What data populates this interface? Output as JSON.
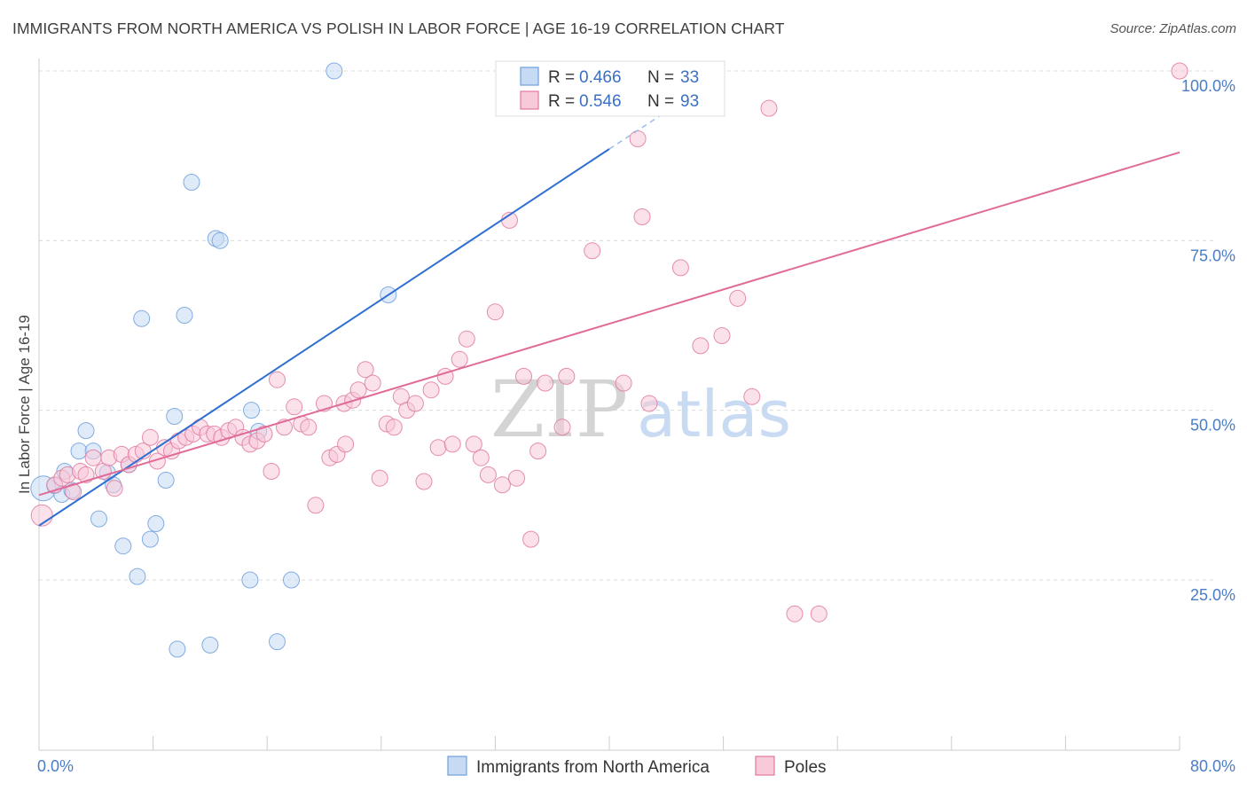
{
  "title": "IMMIGRANTS FROM NORTH AMERICA VS POLISH IN LABOR FORCE | AGE 16-19 CORRELATION CHART",
  "source": "Source: ZipAtlas.com",
  "watermark": {
    "zip": "ZIP",
    "atlas": "atlas"
  },
  "chart_data": {
    "type": "scatter",
    "xlabel": "",
    "ylabel": "In Labor Force | Age 16-19",
    "xlim": [
      0,
      80
    ],
    "ylim": [
      2,
      101
    ],
    "x_tick_labels": [
      "0.0%",
      "80.0%"
    ],
    "y_ticks": [
      25,
      50,
      75,
      100
    ],
    "y_tick_labels": [
      "25.0%",
      "50.0%",
      "75.0%",
      "100.0%"
    ],
    "grid": "horizontal dashed",
    "legend_top": [
      {
        "r_label": "R = ",
        "r_value": "0.466",
        "n_label": "N = ",
        "n_value": "33"
      },
      {
        "r_label": "R = ",
        "r_value": "0.546",
        "n_label": "N = ",
        "n_value": "93"
      }
    ],
    "series": [
      {
        "name": "Immigrants from North America",
        "color": "#6f9fdc",
        "fill": "#c7daf4",
        "trend": {
          "x0": 0,
          "y0": 33,
          "x1": 40,
          "y1": 88.5,
          "dashed_to_x": 48,
          "dashed_to_y": 99.5
        },
        "points": [
          [
            0.3,
            38.5,
            14
          ],
          [
            1.1,
            38.9,
            9
          ],
          [
            1.6,
            37.6,
            9
          ],
          [
            1.8,
            41,
            9
          ],
          [
            2.3,
            38.2,
            9
          ],
          [
            2.8,
            44,
            9
          ],
          [
            3.3,
            47,
            9
          ],
          [
            3.8,
            44,
            9
          ],
          [
            4.2,
            34,
            9
          ],
          [
            4.8,
            40.8,
            9
          ],
          [
            5.2,
            39,
            9
          ],
          [
            5.9,
            30,
            9
          ],
          [
            6.3,
            42,
            9
          ],
          [
            6.9,
            25.5,
            9
          ],
          [
            7.2,
            63.5,
            9
          ],
          [
            7.8,
            31,
            9
          ],
          [
            8.2,
            33.3,
            9
          ],
          [
            8.9,
            39.7,
            9
          ],
          [
            9.5,
            49.1,
            9
          ],
          [
            9.7,
            14.8,
            9
          ],
          [
            10.2,
            64,
            9
          ],
          [
            10.7,
            83.6,
            9
          ],
          [
            12.0,
            15.4,
            9
          ],
          [
            12.4,
            75.3,
            9
          ],
          [
            12.7,
            75,
            9
          ],
          [
            14.8,
            25,
            9
          ],
          [
            14.9,
            50,
            9
          ],
          [
            15.4,
            46.9,
            9
          ],
          [
            16.7,
            15.9,
            9
          ],
          [
            17.7,
            25,
            9
          ],
          [
            20.7,
            100,
            9
          ],
          [
            24.5,
            67,
            9
          ],
          [
            33.0,
            100,
            9
          ]
        ]
      },
      {
        "name": "Poles",
        "color": "#e07aa0",
        "fill": "#f7c9d9",
        "trend": {
          "x0": 0,
          "y0": 37.5,
          "x1": 80,
          "y1": 88
        },
        "points": [
          [
            0.2,
            34.5,
            12
          ],
          [
            1.1,
            39.0,
            9
          ],
          [
            1.6,
            40.0,
            9
          ],
          [
            2.0,
            40.5,
            9
          ],
          [
            2.4,
            38.0,
            9
          ],
          [
            2.9,
            41.0,
            9
          ],
          [
            3.3,
            40.5,
            9
          ],
          [
            3.8,
            43.0,
            9
          ],
          [
            4.5,
            41.0,
            9
          ],
          [
            4.9,
            43.0,
            9
          ],
          [
            5.3,
            38.5,
            9
          ],
          [
            5.8,
            43.5,
            9
          ],
          [
            6.3,
            42.0,
            9
          ],
          [
            6.8,
            43.5,
            9
          ],
          [
            7.3,
            44.0,
            9
          ],
          [
            7.8,
            46.0,
            9
          ],
          [
            8.3,
            42.5,
            9
          ],
          [
            8.8,
            44.5,
            9
          ],
          [
            9.3,
            44.0,
            9
          ],
          [
            9.8,
            45.5,
            9
          ],
          [
            10.3,
            46.0,
            9
          ],
          [
            10.8,
            46.5,
            9
          ],
          [
            11.3,
            47.5,
            9
          ],
          [
            11.8,
            46.5,
            9
          ],
          [
            12.3,
            46.5,
            9
          ],
          [
            12.8,
            46.0,
            9
          ],
          [
            13.3,
            47.0,
            9
          ],
          [
            13.8,
            47.5,
            9
          ],
          [
            14.3,
            46.0,
            9
          ],
          [
            14.8,
            45.0,
            9
          ],
          [
            15.3,
            45.5,
            9
          ],
          [
            15.8,
            46.5,
            9
          ],
          [
            16.3,
            41.0,
            9
          ],
          [
            16.7,
            54.5,
            9
          ],
          [
            17.2,
            47.5,
            9
          ],
          [
            17.9,
            50.5,
            9
          ],
          [
            18.4,
            48.0,
            9
          ],
          [
            18.9,
            47.5,
            9
          ],
          [
            19.4,
            36.0,
            9
          ],
          [
            20.0,
            51.0,
            9
          ],
          [
            20.4,
            43.0,
            9
          ],
          [
            20.9,
            43.5,
            9
          ],
          [
            21.4,
            51.0,
            9
          ],
          [
            22.0,
            51.5,
            9
          ],
          [
            22.4,
            53.0,
            9
          ],
          [
            22.9,
            56.0,
            9
          ],
          [
            23.4,
            54.0,
            9
          ],
          [
            23.9,
            40.0,
            9
          ],
          [
            24.4,
            48.0,
            9
          ],
          [
            24.9,
            47.5,
            9
          ],
          [
            25.4,
            52.0,
            9
          ],
          [
            25.8,
            50.0,
            9
          ],
          [
            26.4,
            51.0,
            9
          ],
          [
            27.0,
            39.5,
            9
          ],
          [
            27.5,
            53.0,
            9
          ],
          [
            28.0,
            44.5,
            9
          ],
          [
            28.5,
            55.0,
            9
          ],
          [
            29.0,
            45.0,
            9
          ],
          [
            29.5,
            57.5,
            9
          ],
          [
            30.0,
            60.5,
            9
          ],
          [
            30.5,
            45.0,
            9
          ],
          [
            31.0,
            43.0,
            9
          ],
          [
            31.5,
            40.5,
            9
          ],
          [
            32.0,
            64.5,
            9
          ],
          [
            32.5,
            39.0,
            9
          ],
          [
            33.0,
            78.0,
            9
          ],
          [
            33.5,
            40.0,
            9
          ],
          [
            34.0,
            55.0,
            9
          ],
          [
            34.5,
            31.0,
            9
          ],
          [
            35.0,
            44.0,
            9
          ],
          [
            35.5,
            54.0,
            9
          ],
          [
            36.0,
            99.5,
            9
          ],
          [
            36.7,
            47.5,
            9
          ],
          [
            37.0,
            55.0,
            9
          ],
          [
            37.6,
            99.5,
            9
          ],
          [
            38.8,
            73.5,
            9
          ],
          [
            40.0,
            99.5,
            9
          ],
          [
            41.0,
            54.0,
            9
          ],
          [
            42.0,
            90.0,
            9
          ],
          [
            42.3,
            78.5,
            9
          ],
          [
            42.8,
            51.0,
            9
          ],
          [
            44.0,
            99.5,
            9
          ],
          [
            45.0,
            71.0,
            9
          ],
          [
            45.9,
            99.5,
            9
          ],
          [
            46.4,
            59.5,
            9
          ],
          [
            47.9,
            61.0,
            9
          ],
          [
            49.0,
            66.5,
            9
          ],
          [
            50.0,
            52.0,
            9
          ],
          [
            51.2,
            94.5,
            9
          ],
          [
            53.0,
            20.0,
            9
          ],
          [
            54.7,
            20.0,
            9
          ],
          [
            80.0,
            100,
            9
          ],
          [
            21.5,
            45.0,
            9
          ]
        ]
      }
    ]
  }
}
